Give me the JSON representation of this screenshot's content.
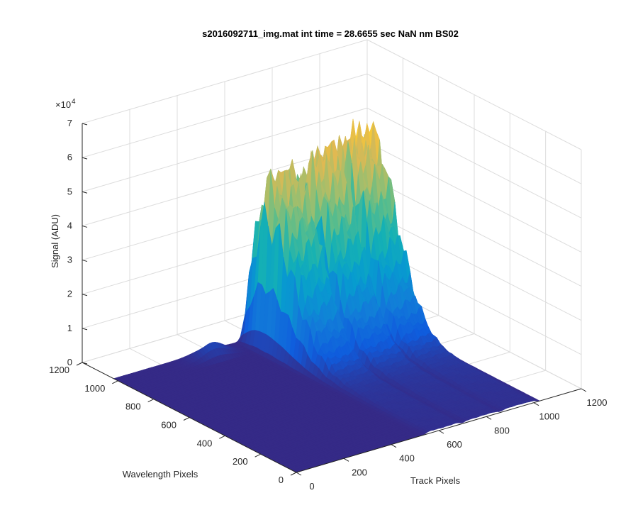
{
  "chart_data": {
    "type": "surface",
    "title": "s2016092711_img.mat int time = 28.6655 sec  NaN nm BS02",
    "xlabel": "Track Pixels",
    "ylabel": "Wavelength Pixels",
    "zlabel": "Signal (ADU)",
    "z_exponent_label": "×10",
    "z_exponent_power": "4",
    "x_ticks": [
      "0",
      "200",
      "400",
      "600",
      "800",
      "1000",
      "1200"
    ],
    "y_ticks": [
      "0",
      "200",
      "400",
      "600",
      "800",
      "1000",
      "1200"
    ],
    "z_ticks": [
      "0",
      "1",
      "2",
      "3",
      "4",
      "5",
      "6",
      "7"
    ],
    "xlim": [
      0,
      1200
    ],
    "ylim": [
      0,
      1200
    ],
    "zlim": [
      0,
      70000
    ],
    "grid": true,
    "colormap": "parula",
    "data_extent": {
      "track": [
        0,
        1024
      ],
      "wavelength": [
        0,
        1024
      ]
    },
    "series": [
      {
        "track_center": 620,
        "track_half_width": 55,
        "wavelength_peak": 900,
        "peak": 55000
      },
      {
        "track_center": 780,
        "track_half_width": 55,
        "wavelength_peak": 900,
        "peak": 58000
      },
      {
        "track_center": 935,
        "track_half_width": 55,
        "wavelength_peak": 900,
        "peak": 61000
      }
    ]
  }
}
